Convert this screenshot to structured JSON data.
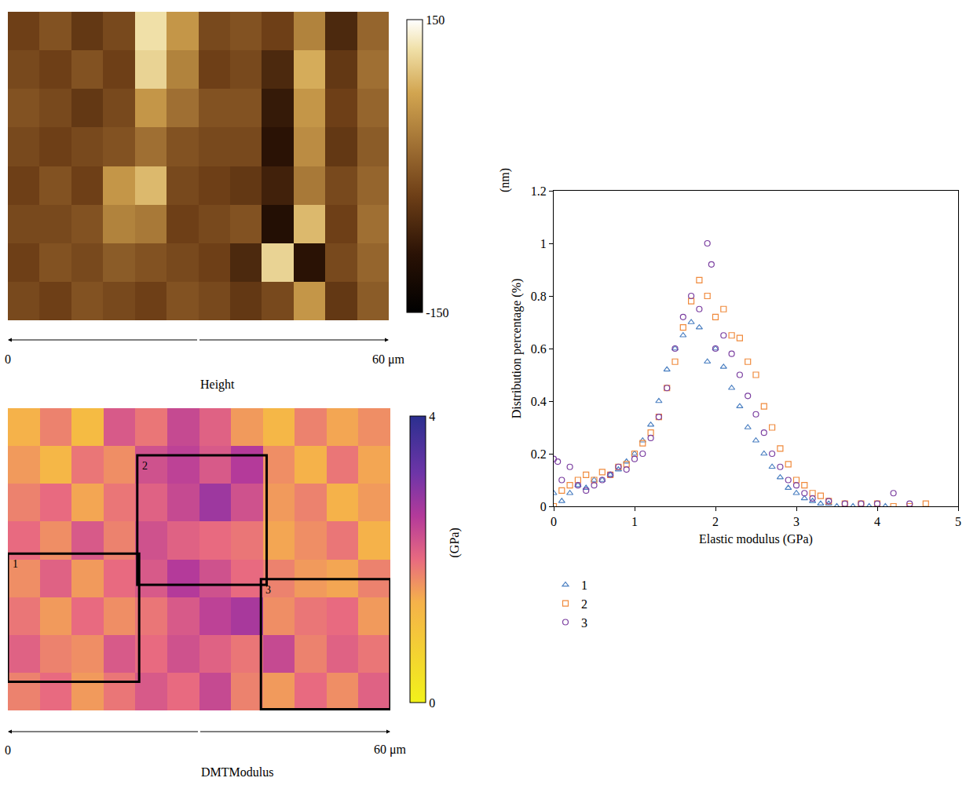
{
  "chart_data": [
    {
      "type": "heatmap",
      "title": "Height",
      "xlim": [
        0,
        60
      ],
      "xticks": [
        {
          "value": 0,
          "label": "0"
        },
        {
          "value": 60,
          "label": "60 μm"
        }
      ],
      "ylim": [
        0,
        48.6
      ],
      "cells": [
        [
          -30,
          -10,
          -40,
          -20,
          120,
          60,
          -20,
          -10,
          -30,
          40,
          -60,
          10
        ],
        [
          -20,
          -30,
          -10,
          -30,
          110,
          40,
          -30,
          -20,
          -60,
          80,
          -40,
          20
        ],
        [
          -10,
          -20,
          -40,
          -20,
          60,
          20,
          -10,
          -10,
          -80,
          60,
          -30,
          10
        ],
        [
          -20,
          -30,
          -20,
          -10,
          20,
          -10,
          -20,
          -20,
          -90,
          50,
          -40,
          0
        ],
        [
          -30,
          -10,
          -30,
          60,
          90,
          -20,
          -30,
          -40,
          -70,
          30,
          -20,
          10
        ],
        [
          -20,
          -20,
          -10,
          40,
          30,
          -30,
          -20,
          -10,
          -100,
          90,
          -30,
          20
        ],
        [
          -30,
          -10,
          -20,
          0,
          -10,
          -20,
          -30,
          -60,
          110,
          -90,
          -20,
          10
        ],
        [
          -20,
          -30,
          -10,
          -20,
          -30,
          -10,
          -20,
          -40,
          -20,
          60,
          -40,
          0
        ]
      ],
      "colorbar": {
        "range": [
          -150,
          150
        ],
        "ticks": [
          150,
          -150
        ],
        "title": "(nm)"
      }
    },
    {
      "type": "heatmap",
      "title": "DMTModulus",
      "xlim": [
        0,
        60
      ],
      "xticks": [
        {
          "value": 0,
          "label": "0"
        },
        {
          "value": 60,
          "label": "60 μm"
        }
      ],
      "ylim": [
        0,
        47.4
      ],
      "cells": [
        [
          1.4,
          1.8,
          1.2,
          2.2,
          1.9,
          2.4,
          2.1,
          1.6,
          1.3,
          1.8,
          1.5,
          1.7
        ],
        [
          1.6,
          1.3,
          1.9,
          1.7,
          2.3,
          2.5,
          2.2,
          2.6,
          1.7,
          1.4,
          1.9,
          1.5
        ],
        [
          1.8,
          2.0,
          1.5,
          1.9,
          2.1,
          2.4,
          2.8,
          2.3,
          1.6,
          1.8,
          1.4,
          1.6
        ],
        [
          2.0,
          1.7,
          2.2,
          1.8,
          2.3,
          2.1,
          2.0,
          1.9,
          1.5,
          1.7,
          1.9,
          1.4
        ],
        [
          1.7,
          2.1,
          1.6,
          2.0,
          2.2,
          2.6,
          2.3,
          2.0,
          1.8,
          1.6,
          1.5,
          1.8
        ],
        [
          1.9,
          1.6,
          2.0,
          1.7,
          1.9,
          2.2,
          2.5,
          2.7,
          1.7,
          1.9,
          2.0,
          1.6
        ],
        [
          2.1,
          1.8,
          1.7,
          2.2,
          2.0,
          2.3,
          2.1,
          1.9,
          2.4,
          1.8,
          2.1,
          1.9
        ],
        [
          1.8,
          2.0,
          1.6,
          1.9,
          2.2,
          2.0,
          2.4,
          1.8,
          1.6,
          2.0,
          1.7,
          2.1
        ]
      ],
      "colorbar": {
        "range": [
          0,
          4
        ],
        "ticks": [
          4,
          0
        ],
        "title": "(GPa)"
      },
      "regions": [
        {
          "label": "1",
          "x": [
            0,
            20.6
          ],
          "y": [
            22.8,
            42.9
          ]
        },
        {
          "label": "2",
          "x": [
            20.3,
            40.6
          ],
          "y": [
            7.4,
            27.7
          ]
        },
        {
          "label": "3",
          "x": [
            39.7,
            60
          ],
          "y": [
            26.8,
            47.2
          ]
        }
      ]
    },
    {
      "type": "scatter",
      "x_label": "Elastic modulus (GPa)",
      "y_label": "Distribution percentage (%)",
      "xlim": [
        0,
        5
      ],
      "xticks": [
        0,
        1,
        2,
        3,
        4,
        5
      ],
      "ylim": [
        0,
        1.2
      ],
      "yticks": [
        0,
        0.2,
        0.4,
        0.6,
        0.8,
        1,
        1.2
      ],
      "legend": "bottom",
      "series": [
        {
          "name": "1",
          "color": "#4a7fc1",
          "marker": "triangle",
          "x": [
            0,
            0.1,
            0.2,
            0.3,
            0.4,
            0.5,
            0.6,
            0.7,
            0.8,
            0.9,
            1.0,
            1.1,
            1.2,
            1.3,
            1.4,
            1.5,
            1.6,
            1.7,
            1.8,
            1.9,
            2.0,
            2.1,
            2.2,
            2.3,
            2.4,
            2.5,
            2.6,
            2.7,
            2.8,
            2.9,
            3.0,
            3.1,
            3.2,
            3.3,
            3.4,
            3.5,
            3.7,
            3.9,
            4.1
          ],
          "values": [
            0.05,
            0.02,
            0.05,
            0.08,
            0.07,
            0.1,
            0.1,
            0.12,
            0.14,
            0.17,
            0.2,
            0.25,
            0.31,
            0.4,
            0.52,
            0.6,
            0.65,
            0.7,
            0.68,
            0.55,
            0.6,
            0.53,
            0.45,
            0.38,
            0.3,
            0.25,
            0.2,
            0.15,
            0.11,
            0.07,
            0.05,
            0.03,
            0.02,
            0.01,
            0.01,
            0,
            0,
            0,
            0
          ]
        },
        {
          "name": "2",
          "color": "#f08a3c",
          "marker": "square",
          "x": [
            0,
            0.1,
            0.2,
            0.3,
            0.4,
            0.5,
            0.6,
            0.7,
            0.8,
            0.9,
            1.0,
            1.1,
            1.2,
            1.3,
            1.4,
            1.5,
            1.6,
            1.7,
            1.8,
            1.9,
            2.0,
            2.1,
            2.2,
            2.3,
            2.4,
            2.5,
            2.6,
            2.7,
            2.8,
            2.9,
            3.0,
            3.1,
            3.2,
            3.3,
            3.4,
            3.6,
            3.8,
            4.0,
            4.2,
            4.4,
            4.6
          ],
          "values": [
            0,
            0.06,
            0.08,
            0.1,
            0.12,
            0.1,
            0.13,
            0.12,
            0.15,
            0.16,
            0.2,
            0.24,
            0.28,
            0.34,
            0.45,
            0.55,
            0.68,
            0.78,
            0.86,
            0.8,
            0.72,
            0.75,
            0.65,
            0.64,
            0.55,
            0.5,
            0.38,
            0.3,
            0.22,
            0.16,
            0.1,
            0.08,
            0.05,
            0.04,
            0.02,
            0.01,
            0.01,
            0.01,
            0,
            0,
            0.01
          ]
        },
        {
          "name": "3",
          "color": "#7b3fa0",
          "marker": "circle",
          "x": [
            0,
            0.05,
            0.1,
            0.2,
            0.3,
            0.4,
            0.5,
            0.6,
            0.7,
            0.8,
            0.9,
            1.0,
            1.1,
            1.2,
            1.3,
            1.4,
            1.5,
            1.6,
            1.7,
            1.8,
            1.9,
            1.95,
            2.0,
            2.1,
            2.2,
            2.3,
            2.4,
            2.5,
            2.6,
            2.7,
            2.8,
            2.9,
            3.0,
            3.1,
            3.2,
            3.4,
            3.6,
            3.8,
            4.0,
            4.2,
            4.4
          ],
          "values": [
            0.18,
            0.17,
            0.1,
            0.15,
            0.08,
            0.06,
            0.08,
            0.1,
            0.12,
            0.15,
            0.14,
            0.18,
            0.2,
            0.26,
            0.34,
            0.45,
            0.6,
            0.72,
            0.8,
            0.75,
            1.0,
            0.92,
            0.6,
            0.65,
            0.58,
            0.5,
            0.42,
            0.35,
            0.28,
            0.2,
            0.15,
            0.1,
            0.08,
            0.05,
            0.03,
            0.02,
            0.01,
            0.01,
            0.01,
            0.05,
            0.01
          ]
        }
      ]
    }
  ]
}
